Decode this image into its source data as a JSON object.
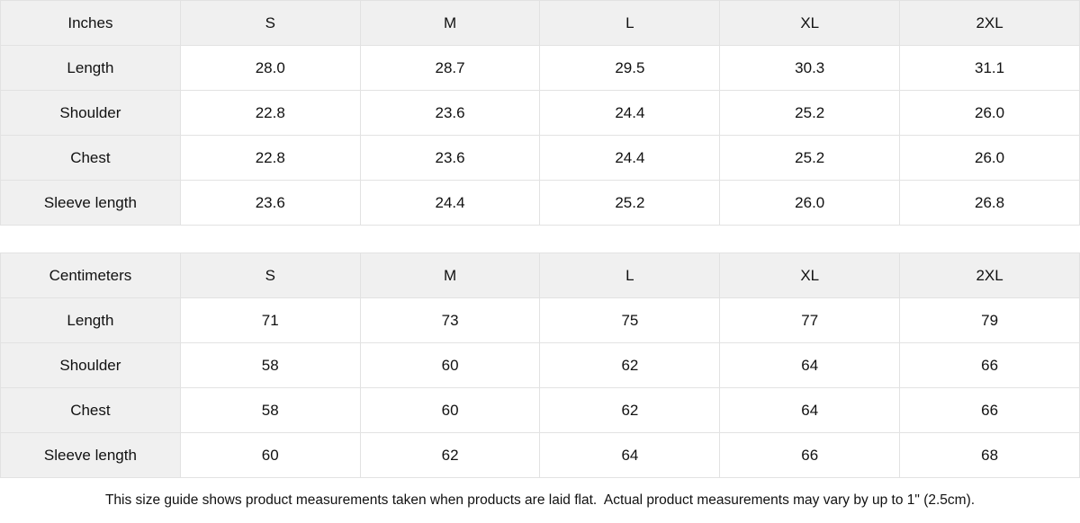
{
  "page": {
    "colors": {
      "background": "#ffffff",
      "text": "#111111",
      "header_bg": "#f0f0f0",
      "border": "#e2e2e2"
    }
  },
  "tables": [
    {
      "name": "inches",
      "header": [
        "Inches",
        "S",
        "M",
        "L",
        "XL",
        "2XL"
      ],
      "rows": [
        {
          "label": "Length",
          "values": [
            "28.0",
            "28.7",
            "29.5",
            "30.3",
            "31.1"
          ]
        },
        {
          "label": "Shoulder",
          "values": [
            "22.8",
            "23.6",
            "24.4",
            "25.2",
            "26.0"
          ]
        },
        {
          "label": "Chest",
          "values": [
            "22.8",
            "23.6",
            "24.4",
            "25.2",
            "26.0"
          ]
        },
        {
          "label": "Sleeve length",
          "values": [
            "23.6",
            "24.4",
            "25.2",
            "26.0",
            "26.8"
          ]
        }
      ]
    },
    {
      "name": "centimeters",
      "header": [
        "Centimeters",
        "S",
        "M",
        "L",
        "XL",
        "2XL"
      ],
      "rows": [
        {
          "label": "Length",
          "values": [
            "71",
            "73",
            "75",
            "77",
            "79"
          ]
        },
        {
          "label": "Shoulder",
          "values": [
            "58",
            "60",
            "62",
            "64",
            "66"
          ]
        },
        {
          "label": "Chest",
          "values": [
            "58",
            "60",
            "62",
            "64",
            "66"
          ]
        },
        {
          "label": "Sleeve length",
          "values": [
            "60",
            "62",
            "64",
            "66",
            "68"
          ]
        }
      ]
    }
  ],
  "footer": {
    "note": "This size guide shows product measurements taken when products are laid flat.  Actual product measurements may vary by up to 1\" (2.5cm)."
  }
}
